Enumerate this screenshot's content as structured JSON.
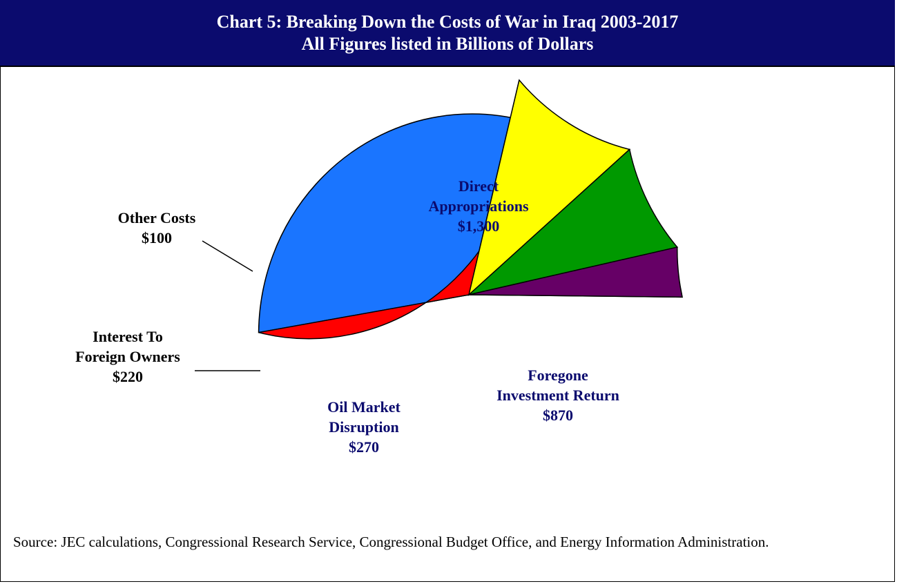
{
  "chart_data": {
    "type": "pie",
    "title": "Chart 5: Breaking Down the Costs of War in Iraq 2003-2017",
    "subtitle": "All Figures listed in Billions of Dollars",
    "slices": [
      {
        "label": [
          "Direct",
          "Appropriations",
          "$1,300"
        ],
        "value": 1300,
        "color": "#1a75ff",
        "text_color": "#0b0b6e"
      },
      {
        "label": [
          "Foregone",
          "Investment Return",
          "$870"
        ],
        "value": 870,
        "color": "#ff0000",
        "text_color": "#0b0b6e"
      },
      {
        "label": [
          "Oil Market",
          "Disruption",
          "$270"
        ],
        "value": 270,
        "color": "#ffff00",
        "text_color": "#0b0b6e"
      },
      {
        "label": [
          "Interest To",
          "Foreign Owners",
          "$220"
        ],
        "value": 220,
        "color": "#009900",
        "text_color": "#000000"
      },
      {
        "label": [
          "Other Costs",
          "$100"
        ],
        "value": 100,
        "color": "#660066",
        "text_color": "#000000"
      }
    ],
    "source": "Source: JEC calculations, Congressional Research Service, Congressional Budget Office, and Energy Information Administration."
  }
}
